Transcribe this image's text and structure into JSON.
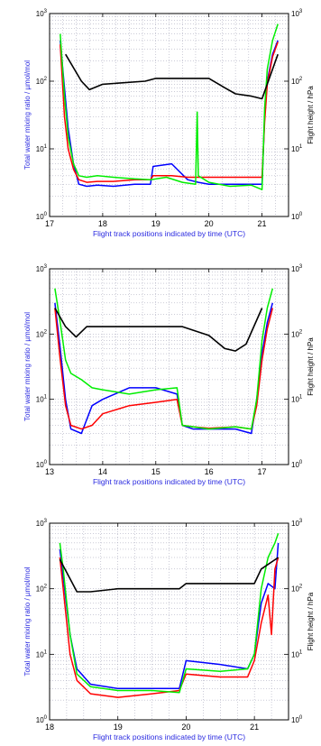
{
  "chart_data": [
    {
      "type": "line",
      "xlabel": "Flight track positions indicated by time (UTC)",
      "ylabel": "Total water mixing ratio / µmol/mol",
      "y2label": "Flight height / hPa",
      "xlim": [
        17,
        21.5
      ],
      "xticks": [
        17,
        18,
        19,
        20,
        21
      ],
      "ylim": [
        1,
        1000
      ],
      "y_scale": "log",
      "y2lim": [
        1,
        1000
      ],
      "y2_scale": "log",
      "yticks": [
        "10^0",
        "10^1",
        "10^2",
        "10^3"
      ],
      "grid": true,
      "series": [
        {
          "color": "#0000ff",
          "axis": "left",
          "x": [
            17.2,
            17.28,
            17.35,
            17.45,
            17.55,
            17.7,
            17.9,
            18.2,
            18.6,
            18.9,
            18.95,
            19.3,
            19.6,
            19.8,
            20.0,
            20.4,
            20.8,
            21.0,
            21.05,
            21.1,
            21.2,
            21.3
          ],
          "y": [
            400,
            80,
            20,
            6,
            3,
            2.8,
            2.9,
            2.8,
            3.0,
            3.0,
            5.5,
            6.0,
            3.5,
            3.2,
            3.0,
            3.0,
            3.0,
            3.0,
            30,
            100,
            250,
            400
          ]
        },
        {
          "color": "#ff0000",
          "axis": "left",
          "x": [
            17.2,
            17.28,
            17.35,
            17.45,
            17.55,
            17.7,
            17.9,
            18.2,
            18.6,
            18.9,
            18.95,
            19.3,
            19.6,
            19.8,
            20.0,
            20.4,
            20.8,
            21.0,
            21.05,
            21.1,
            21.2,
            21.3
          ],
          "y": [
            350,
            30,
            10,
            5,
            3.5,
            3.2,
            3.3,
            3.3,
            3.5,
            3.5,
            4.0,
            4.0,
            3.8,
            3.8,
            3.8,
            3.8,
            3.8,
            3.8,
            25,
            90,
            230,
            380
          ]
        },
        {
          "color": "#00ee00",
          "axis": "left",
          "x": [
            17.2,
            17.28,
            17.35,
            17.45,
            17.55,
            17.7,
            17.9,
            18.2,
            18.6,
            18.9,
            19.2,
            19.5,
            19.75,
            19.78,
            19.8,
            20.0,
            20.4,
            20.8,
            21.0,
            21.05,
            21.1,
            21.2,
            21.3
          ],
          "y": [
            500,
            60,
            15,
            6,
            4,
            3.8,
            4.0,
            3.8,
            3.6,
            3.5,
            3.8,
            3.2,
            3.0,
            35,
            4.0,
            3.2,
            2.8,
            2.9,
            2.5,
            40,
            150,
            400,
            700
          ]
        },
        {
          "color": "#000000",
          "axis": "right",
          "x": [
            17.3,
            17.6,
            17.75,
            18.0,
            18.8,
            19.0,
            20.0,
            20.3,
            20.5,
            20.8,
            21.0,
            21.3
          ],
          "y": [
            250,
            100,
            75,
            90,
            100,
            110,
            110,
            80,
            65,
            60,
            55,
            250
          ]
        }
      ]
    },
    {
      "type": "line",
      "xlabel": "Flight track positions indicated by time (UTC)",
      "ylabel": "Total water mixing ratio / µmol/mol",
      "y2label": "Flight height / hPa",
      "xlim": [
        13,
        17.5
      ],
      "xticks": [
        13,
        14,
        15,
        16,
        17
      ],
      "ylim": [
        1,
        1000
      ],
      "y_scale": "log",
      "y2lim": [
        1,
        1000
      ],
      "y2_scale": "log",
      "yticks": [
        "10^0",
        "10^1",
        "10^2",
        "10^3"
      ],
      "grid": true,
      "series": [
        {
          "color": "#0000ff",
          "axis": "left",
          "x": [
            13.1,
            13.2,
            13.3,
            13.4,
            13.6,
            13.8,
            14.0,
            14.5,
            15.0,
            15.4,
            15.5,
            15.7,
            16.0,
            16.5,
            16.8,
            16.9,
            17.0,
            17.1,
            17.2
          ],
          "y": [
            300,
            60,
            10,
            3.5,
            3.0,
            8,
            10,
            15,
            15,
            12,
            4,
            3.5,
            3.5,
            3.5,
            3.0,
            10,
            50,
            150,
            300
          ]
        },
        {
          "color": "#ff0000",
          "axis": "left",
          "x": [
            13.1,
            13.2,
            13.3,
            13.4,
            13.6,
            13.8,
            14.0,
            14.5,
            15.0,
            15.4,
            15.5,
            15.7,
            16.0,
            16.5,
            16.8,
            16.9,
            17.0,
            17.1,
            17.2
          ],
          "y": [
            250,
            40,
            8,
            4,
            3.5,
            4,
            6,
            8,
            9,
            10,
            4,
            3.8,
            3.6,
            3.8,
            3.5,
            8,
            40,
            120,
            250
          ]
        },
        {
          "color": "#00ee00",
          "axis": "left",
          "x": [
            13.1,
            13.2,
            13.3,
            13.4,
            13.6,
            13.8,
            14.0,
            14.5,
            15.0,
            15.4,
            15.5,
            15.7,
            16.0,
            16.5,
            16.8,
            16.9,
            17.0,
            17.1,
            17.2
          ],
          "y": [
            500,
            150,
            40,
            25,
            20,
            15,
            14,
            12,
            14,
            15,
            4.0,
            3.8,
            3.5,
            3.8,
            3.5,
            10,
            80,
            250,
            500
          ]
        },
        {
          "color": "#000000",
          "axis": "right",
          "x": [
            13.1,
            13.3,
            13.5,
            13.7,
            14.0,
            15.5,
            16.0,
            16.3,
            16.5,
            16.7,
            17.0
          ],
          "y": [
            250,
            130,
            90,
            130,
            130,
            130,
            95,
            60,
            55,
            70,
            250
          ]
        }
      ]
    },
    {
      "type": "line",
      "xlabel": "Flight track positions indicated by time (UTC)",
      "ylabel": "Total water mixing ratio / µmol/mol",
      "y2label": "Flight height / hPa",
      "xlim": [
        18,
        21.5
      ],
      "xticks": [
        18,
        19,
        20,
        21
      ],
      "ylim": [
        1,
        1000
      ],
      "y_scale": "log",
      "y2lim": [
        1,
        1000
      ],
      "y2_scale": "log",
      "yticks": [
        "10^0",
        "10^1",
        "10^2",
        "10^3"
      ],
      "grid": true,
      "series": [
        {
          "color": "#0000ff",
          "axis": "left",
          "x": [
            18.15,
            18.2,
            18.3,
            18.4,
            18.6,
            19.0,
            19.5,
            19.9,
            20.0,
            20.5,
            20.9,
            21.0,
            21.1,
            21.2,
            21.3,
            21.35
          ],
          "y": [
            400,
            150,
            20,
            6,
            3.5,
            3.0,
            3.0,
            3.0,
            8,
            7,
            6,
            10,
            60,
            120,
            100,
            500
          ]
        },
        {
          "color": "#ff0000",
          "axis": "left",
          "x": [
            18.15,
            18.2,
            18.3,
            18.4,
            18.6,
            19.0,
            19.5,
            19.9,
            20.0,
            20.5,
            20.9,
            21.0,
            21.1,
            21.2,
            21.25,
            21.3,
            21.35
          ],
          "y": [
            300,
            100,
            10,
            4,
            2.5,
            2.2,
            2.5,
            2.8,
            5,
            4.5,
            4.5,
            8,
            30,
            80,
            20,
            200,
            300
          ]
        },
        {
          "color": "#00ee00",
          "axis": "left",
          "x": [
            18.15,
            18.2,
            18.3,
            18.4,
            18.6,
            19.0,
            19.5,
            19.9,
            20.0,
            20.5,
            20.9,
            21.0,
            21.1,
            21.2,
            21.3,
            21.35
          ],
          "y": [
            500,
            200,
            20,
            5,
            3.2,
            2.8,
            2.8,
            2.6,
            6,
            5.5,
            6,
            10,
            100,
            300,
            500,
            700
          ]
        },
        {
          "color": "#000000",
          "axis": "right",
          "x": [
            18.15,
            18.4,
            18.6,
            19.0,
            19.9,
            20.0,
            20.5,
            21.0,
            21.1,
            21.35
          ],
          "y": [
            280,
            90,
            90,
            100,
            100,
            120,
            120,
            120,
            200,
            300
          ]
        }
      ]
    }
  ]
}
